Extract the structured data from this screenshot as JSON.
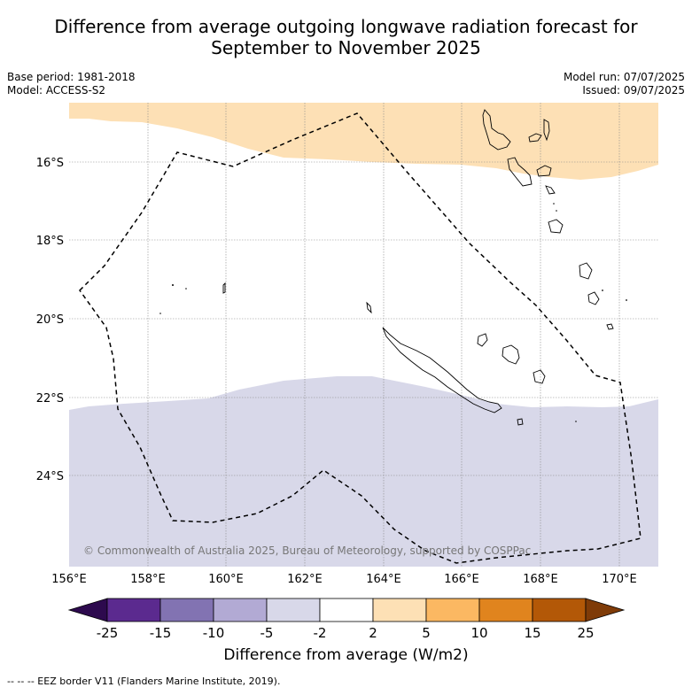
{
  "title_line1": "Difference from average outgoing longwave radiation forecast for",
  "title_line2": "September to November 2025",
  "meta_left": [
    "Base period: 1981-2018",
    "Model: ACCESS-S2"
  ],
  "meta_right": [
    "Model run: 07/07/2025",
    "Issued: 09/07/2025"
  ],
  "map": {
    "lon_labels": [
      "156°E",
      "158°E",
      "160°E",
      "162°E",
      "164°E",
      "166°E",
      "168°E",
      "170°E"
    ],
    "lat_labels": [
      "16°S",
      "18°S",
      "20°S",
      "22°S",
      "24°S"
    ],
    "copyright": "© Commonwealth of Australia 2025, Bureau of Meteorology, supported by COSPPac",
    "colors": {
      "positive_band": "#fde0b5",
      "negative_band": "#d8d8e9",
      "eez_line": "#000000",
      "grid": "#888888"
    }
  },
  "colorbar": {
    "ticks": [
      "-25",
      "-15",
      "-10",
      "-5",
      "-2",
      "2",
      "5",
      "10",
      "15",
      "25"
    ],
    "colors": [
      "#2d0a4e",
      "#5b2a8f",
      "#8273b2",
      "#b2aad4",
      "#d8d8e9",
      "#ffffff",
      "#fde0b5",
      "#fbb862",
      "#e0841e",
      "#b35807",
      "#7f3b08"
    ],
    "label": "Difference from average (W/m2)"
  },
  "footnote": "--  --  -- EEZ border V11 (Flanders Marine Institute, 2019)."
}
